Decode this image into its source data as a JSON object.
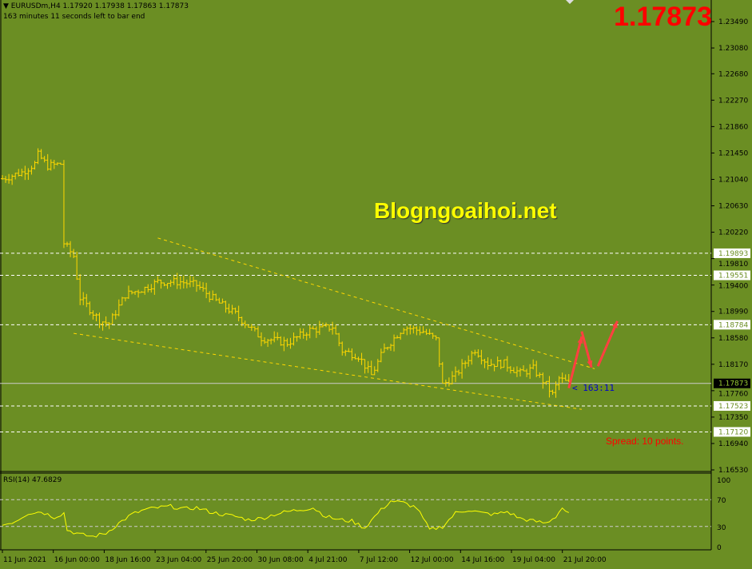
{
  "header": {
    "symbol_line": "EURUSDm,H4  1.17920 1.17938 1.17863 1.17873",
    "timer_line": "163 minutes 11 seconds left to bar end"
  },
  "current_price": "1.17873",
  "watermark": "Blogngoaihoi.net",
  "spread_text": "Spread: 10 points.",
  "bar_timer": "< 163:11",
  "colors": {
    "background": "#6b8e23",
    "bars": "#ffd700",
    "price_big": "#ff0000",
    "arrows": "#ff4040",
    "rsi": "#ffff00"
  },
  "chart_data": [
    {
      "type": "ohlc",
      "symbol": "EURUSDm",
      "timeframe": "H4",
      "ylim": [
        1.1653,
        1.2349
      ],
      "y_ticks": [
        "1.23490",
        "1.23080",
        "1.22680",
        "1.22270",
        "1.21860",
        "1.21450",
        "1.21040",
        "1.20630",
        "1.20220",
        "1.19810",
        "1.19400",
        "1.18990",
        "1.18580",
        "1.18170",
        "1.17760",
        "1.17350",
        "1.16940",
        "1.16530"
      ],
      "x_ticks": [
        "11 Jun 2021",
        "16 Jun 00:00",
        "18 Jun 16:00",
        "23 Jun 04:00",
        "25 Jun 20:00",
        "30 Jun 08:00",
        "4 Jul 21:00",
        "7 Jul 12:00",
        "12 Jul 00:00",
        "14 Jul 16:00",
        "19 Jul 04:00",
        "21 Jul 20:00"
      ],
      "bar_count": 176,
      "close_path": [
        [
          0,
          1.2105
        ],
        [
          6,
          1.2115
        ],
        [
          10,
          1.2128
        ],
        [
          11,
          1.2142
        ],
        [
          14,
          1.2125
        ],
        [
          18,
          1.2128
        ],
        [
          19,
          1.2005
        ],
        [
          22,
          1.1985
        ],
        [
          24,
          1.192
        ],
        [
          30,
          1.1885
        ],
        [
          33,
          1.188
        ],
        [
          38,
          1.1925
        ],
        [
          44,
          1.1935
        ],
        [
          48,
          1.1945
        ],
        [
          55,
          1.1945
        ],
        [
          60,
          1.194
        ],
        [
          66,
          1.1915
        ],
        [
          72,
          1.1895
        ],
        [
          80,
          1.1858
        ],
        [
          88,
          1.185
        ],
        [
          95,
          1.187
        ],
        [
          102,
          1.1875
        ],
        [
          105,
          1.1838
        ],
        [
          110,
          1.183
        ],
        [
          114,
          1.18
        ],
        [
          118,
          1.184
        ],
        [
          124,
          1.1875
        ],
        [
          130,
          1.1868
        ],
        [
          134,
          1.1855
        ],
        [
          136,
          1.1785
        ],
        [
          140,
          1.18
        ],
        [
          146,
          1.184
        ],
        [
          150,
          1.1818
        ],
        [
          155,
          1.1818
        ],
        [
          160,
          1.1803
        ],
        [
          164,
          1.181
        ],
        [
          168,
          1.1785
        ],
        [
          170,
          1.177
        ],
        [
          172,
          1.1795
        ],
        [
          175,
          1.1787
        ]
      ],
      "horizontal_levels": {
        "dashed": [
          "1.19893",
          "1.19551",
          "1.18784",
          "1.17523",
          "1.17120"
        ],
        "solid": "1.17873"
      },
      "trendlines": [
        {
          "from": [
            48,
            1.2013
          ],
          "to": [
            183,
            1.181
          ]
        },
        {
          "from": [
            22,
            1.1865
          ],
          "to": [
            179,
            1.1747
          ]
        }
      ],
      "arrows": [
        [
          [
            175,
            1.178
          ],
          [
            179,
            1.186
          ]
        ],
        [
          [
            179,
            1.1868
          ],
          [
            182,
            1.1812
          ]
        ],
        [
          [
            184,
            1.1814
          ],
          [
            190,
            1.1884
          ]
        ]
      ]
    },
    {
      "type": "line",
      "title": "RSI(14) 47.6829",
      "ylim": [
        0,
        100
      ],
      "y_ticks": [
        "100",
        "70",
        "30",
        "0"
      ],
      "levels": [
        70,
        30
      ],
      "path": [
        [
          0,
          32
        ],
        [
          4,
          38
        ],
        [
          8,
          50
        ],
        [
          12,
          52
        ],
        [
          16,
          44
        ],
        [
          19,
          50
        ],
        [
          20,
          25
        ],
        [
          24,
          18
        ],
        [
          28,
          15
        ],
        [
          32,
          20
        ],
        [
          36,
          35
        ],
        [
          40,
          48
        ],
        [
          44,
          55
        ],
        [
          48,
          58
        ],
        [
          52,
          60
        ],
        [
          56,
          56
        ],
        [
          60,
          58
        ],
        [
          64,
          52
        ],
        [
          68,
          48
        ],
        [
          72,
          45
        ],
        [
          76,
          40
        ],
        [
          80,
          42
        ],
        [
          84,
          48
        ],
        [
          88,
          52
        ],
        [
          92,
          55
        ],
        [
          96,
          58
        ],
        [
          100,
          45
        ],
        [
          104,
          40
        ],
        [
          108,
          38
        ],
        [
          112,
          28
        ],
        [
          116,
          50
        ],
        [
          120,
          68
        ],
        [
          124,
          65
        ],
        [
          128,
          58
        ],
        [
          132,
          25
        ],
        [
          136,
          30
        ],
        [
          140,
          50
        ],
        [
          144,
          55
        ],
        [
          148,
          50
        ],
        [
          152,
          48
        ],
        [
          156,
          52
        ],
        [
          160,
          42
        ],
        [
          164,
          38
        ],
        [
          168,
          35
        ],
        [
          171,
          45
        ],
        [
          173,
          58
        ],
        [
          175,
          48
        ]
      ]
    }
  ]
}
